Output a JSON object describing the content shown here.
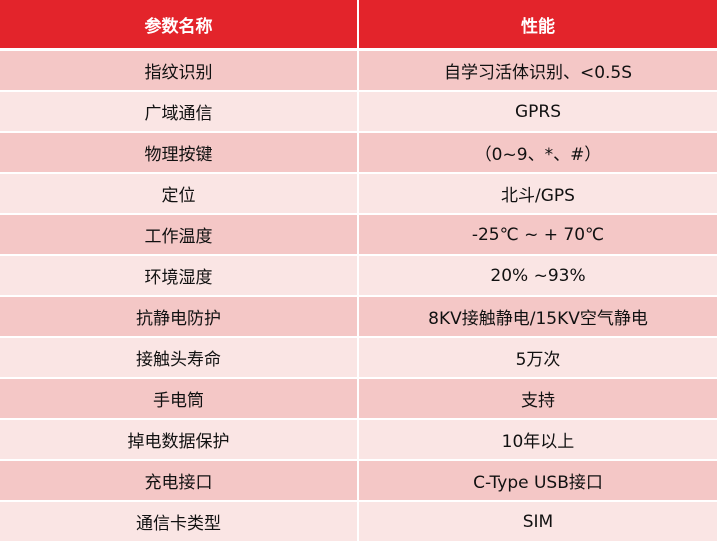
{
  "header": {
    "param_label": "参数名称",
    "perf_label": "性能"
  },
  "rows": [
    {
      "name": "指纹识别",
      "value": "自学习活体识别、<0.5S"
    },
    {
      "name": "广域通信",
      "value": "GPRS"
    },
    {
      "name": "物理按键",
      "value": "（0~9、*、#）"
    },
    {
      "name": "定位",
      "value": "北斗/GPS"
    },
    {
      "name": "工作温度",
      "value": "-25℃ ~ + 70℃"
    },
    {
      "name": "环境湿度",
      "value": "20% ~93%"
    },
    {
      "name": "抗静电防护",
      "value": "8KV接触静电/15KV空气静电"
    },
    {
      "name": "接触头寿命",
      "value": "5万次"
    },
    {
      "name": "手电筒",
      "value": "支持"
    },
    {
      "name": "掉电数据保护",
      "value": "10年以上"
    },
    {
      "name": "充电接口",
      "value": "C-Type USB接口"
    },
    {
      "name": "通信卡类型",
      "value": "SIM"
    }
  ],
  "colors": {
    "header_bg": "#e3242b",
    "row_odd": "#f4c7c6",
    "row_even": "#fae5e4"
  }
}
